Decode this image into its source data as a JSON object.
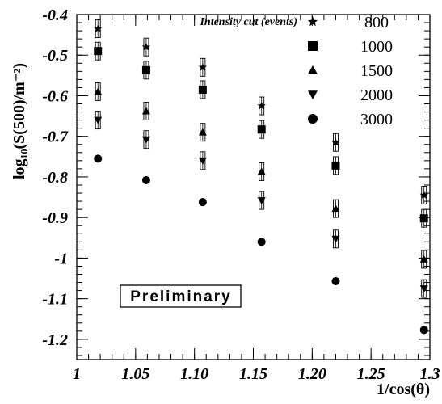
{
  "chart_data": {
    "type": "scatter",
    "xlabel": "1/cos(θ)",
    "ylabel": "log₁₀(S(500)/m⁻²)",
    "xlim": [
      1.0,
      1.3
    ],
    "ylim": [
      -1.25,
      -0.4
    ],
    "xticks": [
      1.0,
      1.05,
      1.1,
      1.15,
      1.2,
      1.25,
      1.3
    ],
    "xtick_labels": [
      "1",
      "1.05",
      "1.10",
      "1.15",
      "1.20",
      "1.25",
      "1.3"
    ],
    "yticks": [
      -0.4,
      -0.5,
      -0.6,
      -0.7,
      -0.8,
      -0.9,
      -1.0,
      -1.1,
      -1.2
    ],
    "ytick_labels": [
      "-0.4",
      "-0.5",
      "-0.6",
      "-0.7",
      "-0.8",
      "-0.9",
      "-1",
      "-1.1",
      "-1.2"
    ],
    "legend": {
      "title": "Intensity cut (events)",
      "placement": "top-right"
    },
    "annotation": "Preliminary",
    "x": [
      1.018,
      1.059,
      1.107,
      1.157,
      1.22,
      1.295
    ],
    "series": [
      {
        "name": "800",
        "marker": "star",
        "values": [
          -0.435,
          -0.48,
          -0.53,
          -0.625,
          -0.715,
          -0.845
        ]
      },
      {
        "name": "1000",
        "marker": "square",
        "values": [
          -0.49,
          -0.537,
          -0.585,
          -0.683,
          -0.772,
          -0.902
        ]
      },
      {
        "name": "1500",
        "marker": "triangle-up",
        "values": [
          -0.59,
          -0.638,
          -0.69,
          -0.787,
          -0.878,
          -1.003
        ]
      },
      {
        "name": "2000",
        "marker": "triangle-down",
        "values": [
          -0.66,
          -0.708,
          -0.76,
          -0.858,
          -0.953,
          -1.075
        ]
      },
      {
        "name": "3000",
        "marker": "circle",
        "values": [
          -0.755,
          -0.808,
          -0.862,
          -0.96,
          -1.057,
          -1.177
        ]
      }
    ],
    "syst_boxes_on_series": [
      "800",
      "1000",
      "1500",
      "2000"
    ],
    "grid": false
  }
}
